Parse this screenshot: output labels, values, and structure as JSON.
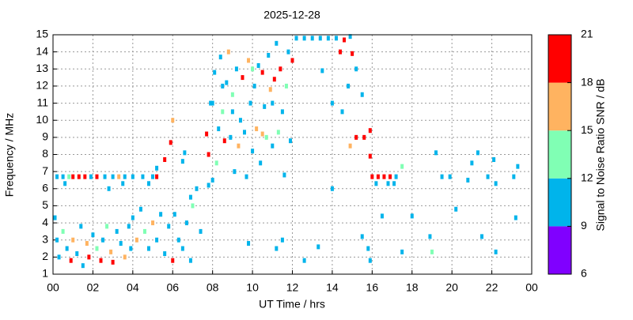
{
  "chart_data": {
    "type": "scatter",
    "title": "2025-12-28",
    "x_label": "UT Time / hrs",
    "y_label": "Frequency / MHz",
    "xlim": [
      0,
      24
    ],
    "ylim": [
      1,
      15
    ],
    "xticks": [
      {
        "value": 0,
        "label": "00"
      },
      {
        "value": 2,
        "label": "02"
      },
      {
        "value": 4,
        "label": "04"
      },
      {
        "value": 6,
        "label": "06"
      },
      {
        "value": 8,
        "label": "08"
      },
      10,
      12,
      14,
      16,
      18,
      20,
      22,
      {
        "value": 24,
        "label": "00"
      }
    ],
    "yticks": [
      1,
      2,
      3,
      4,
      5,
      6,
      7,
      8,
      9,
      10,
      11,
      12,
      13,
      14,
      15
    ],
    "grid": true,
    "colorbar": {
      "label": "Signal to Noise Ratio SNR / dB",
      "lim": [
        6,
        21
      ],
      "ticks": [
        6,
        9,
        12,
        15,
        18,
        21
      ],
      "colors": [
        "#8000ff",
        "#00b4eb",
        "#80ffb4",
        "#ffb360",
        "#ff0000"
      ]
    },
    "x": [
      0.2,
      0.5,
      0.8,
      1.0,
      1.3,
      1.6,
      1.9,
      2.2,
      2.6,
      3.0,
      3.3,
      3.6,
      4.0,
      4.5,
      5.0,
      0.6,
      2.8,
      3.5,
      4.8,
      5.2,
      0.1,
      0.2,
      0.3,
      0.5,
      0.7,
      0.9,
      1.0,
      1.2,
      1.4,
      1.5,
      1.7,
      1.8,
      2.0,
      2.2,
      2.4,
      2.5,
      2.7,
      2.9,
      3.0,
      3.2,
      3.4,
      3.6,
      3.8,
      3.9,
      4.0,
      4.2,
      4.4,
      4.6,
      4.8,
      5.0,
      5.2,
      5.4,
      5.6,
      5.8,
      6.0,
      6.1,
      6.3,
      6.5,
      6.7,
      6.9,
      5.9,
      6.0,
      5.6,
      5.2,
      6.5,
      6.6,
      6.9,
      7.0,
      7.2,
      7.4,
      7.7,
      7.8,
      7.9,
      8.0,
      8.1,
      8.2,
      8.3,
      8.4,
      8.5,
      8.6,
      8.7,
      8.8,
      8.9,
      9.0,
      9.1,
      9.2,
      9.3,
      9.4,
      9.5,
      9.6,
      9.7,
      9.8,
      9.9,
      10.0,
      10.1,
      10.2,
      10.3,
      10.4,
      10.5,
      10.6,
      10.7,
      10.8,
      10.9,
      11.0,
      11.1,
      11.2,
      11.3,
      11.4,
      11.5,
      11.6,
      11.7,
      11.8,
      11.9,
      12.0,
      8.0,
      9.0,
      10.0,
      11.0,
      8.5,
      10.5,
      12.2,
      12.6,
      13.0,
      13.4,
      13.8,
      14.2,
      14.6,
      14.9,
      14.4,
      15.0,
      14.0,
      14.5,
      14.8,
      15.2,
      15.5,
      13.5,
      14.9,
      15.2,
      15.6,
      15.9,
      15.9,
      16.0,
      16.3,
      16.6,
      16.9,
      17.2,
      17.5,
      16.2,
      16.8,
      17.1,
      15.5,
      15.8,
      15.9,
      16.5,
      17.5,
      18.0,
      18.9,
      19.0,
      19.5,
      19.9,
      20.2,
      20.8,
      21.0,
      21.3,
      21.5,
      22.1,
      22.2,
      22.2,
      23.1,
      23.3,
      23.2,
      21.8,
      19.2,
      14.0,
      13.3,
      11.5,
      11.2,
      9.8,
      12.6,
      7.8
    ],
    "values": [
      6.7,
      6.7,
      6.7,
      6.7,
      6.7,
      6.7,
      6.7,
      6.7,
      6.7,
      6.7,
      6.7,
      6.7,
      6.7,
      6.7,
      6.7,
      6.3,
      6.0,
      6.3,
      6.3,
      6.7,
      4.3,
      3.0,
      2.0,
      3.5,
      2.5,
      1.8,
      3.0,
      2.2,
      3.8,
      1.5,
      2.8,
      2.0,
      3.3,
      2.5,
      1.8,
      3.0,
      3.8,
      2.3,
      1.7,
      3.5,
      2.8,
      2.0,
      3.8,
      2.5,
      4.3,
      3.0,
      4.8,
      3.5,
      2.5,
      4.0,
      3.0,
      4.5,
      2.2,
      3.8,
      1.8,
      4.5,
      3.0,
      2.5,
      4.0,
      1.8,
      8.7,
      10.0,
      7.7,
      7.2,
      7.6,
      8.1,
      5.5,
      5.0,
      6.0,
      3.5,
      9.2,
      8.0,
      11.0,
      6.5,
      12.8,
      7.5,
      9.5,
      13.7,
      10.5,
      8.8,
      12.2,
      14.0,
      9.0,
      11.5,
      7.0,
      13.0,
      8.5,
      10.0,
      12.5,
      9.3,
      6.7,
      13.5,
      11.0,
      8.2,
      12.0,
      9.5,
      13.2,
      7.5,
      12.8,
      10.8,
      9.0,
      13.8,
      11.8,
      8.5,
      12.4,
      14.5,
      9.3,
      13.0,
      10.5,
      6.8,
      12.0,
      14.0,
      8.8,
      13.5,
      11.0,
      10.5,
      13.0,
      11.0,
      12.0,
      9.2,
      14.8,
      14.8,
      14.8,
      14.8,
      14.8,
      14.8,
      14.7,
      14.9,
      14.0,
      13.9,
      11.0,
      10.5,
      12.0,
      13.0,
      11.5,
      12.9,
      8.5,
      9.0,
      9.0,
      9.4,
      7.9,
      6.7,
      6.7,
      6.7,
      6.7,
      6.7,
      7.3,
      6.3,
      6.3,
      6.3,
      3.2,
      2.5,
      1.8,
      4.4,
      2.3,
      4.4,
      3.2,
      2.3,
      6.7,
      6.7,
      4.8,
      6.5,
      7.5,
      8.1,
      3.2,
      7.7,
      6.3,
      2.3,
      6.7,
      7.3,
      4.3,
      6.7,
      8.1,
      6.0,
      2.6,
      3.0,
      2.5,
      2.8,
      1.8,
      6.2
    ],
    "snr": [
      10,
      10,
      12,
      20,
      20,
      19,
      10,
      20,
      11,
      10,
      17,
      10,
      10,
      11,
      10,
      10,
      10,
      10,
      10,
      20,
      10,
      11,
      10,
      13,
      10,
      20,
      16,
      10,
      10,
      10,
      17,
      20,
      10,
      12,
      20,
      10,
      13,
      17,
      19,
      10,
      10,
      16,
      10,
      10,
      10,
      17,
      10,
      12,
      10,
      16,
      10,
      10,
      10,
      11,
      20,
      10,
      10,
      10,
      10,
      10,
      20,
      15,
      20,
      10,
      10,
      10,
      10,
      12,
      10,
      10,
      20,
      19,
      10,
      10,
      10,
      13,
      10,
      10,
      12,
      20,
      10,
      17,
      10,
      13,
      10,
      10,
      16,
      10,
      20,
      10,
      10,
      16,
      10,
      10,
      11,
      17,
      10,
      10,
      20,
      10,
      12,
      10,
      16,
      10,
      19,
      10,
      13,
      20,
      10,
      10,
      12,
      10,
      10,
      20,
      11,
      10,
      12,
      10,
      10,
      16,
      10,
      10,
      10,
      10,
      10,
      11,
      20,
      10,
      20,
      19,
      10,
      10,
      10,
      10,
      10,
      10,
      16,
      20,
      20,
      20,
      20,
      20,
      19,
      20,
      19,
      10,
      12,
      10,
      10,
      10,
      10,
      10,
      10,
      10,
      10,
      10,
      10,
      13,
      10,
      10,
      10,
      10,
      10,
      10,
      10,
      10,
      10,
      10,
      10,
      10,
      10,
      10,
      10,
      10,
      10,
      10,
      10,
      10,
      10,
      10
    ]
  }
}
